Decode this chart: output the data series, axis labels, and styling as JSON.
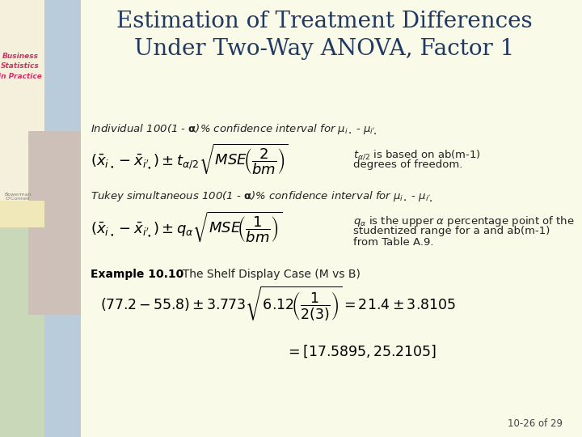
{
  "title_line1": "Estimation of Treatment Differences",
  "title_line2": "Under Two-Way ANOVA, Factor 1",
  "title_color": "#1F3864",
  "title_fontsize": 20,
  "main_bg": "#FAFAE8",
  "slide_number": "10-26 of 29",
  "sidebar_cream": "#F5F0DC",
  "sidebar_blue": "#B8CCDC",
  "sidebar_green": "#C8D8B8",
  "sidebar_yellow": "#F0E8B8",
  "sidebar_img_bg": "#D8CCC0",
  "text_color": "#333333",
  "body_fontsize": 10.5,
  "bold_label": "Example 10.10",
  "example_text": "  The Shelf Display Case (M vs B)"
}
